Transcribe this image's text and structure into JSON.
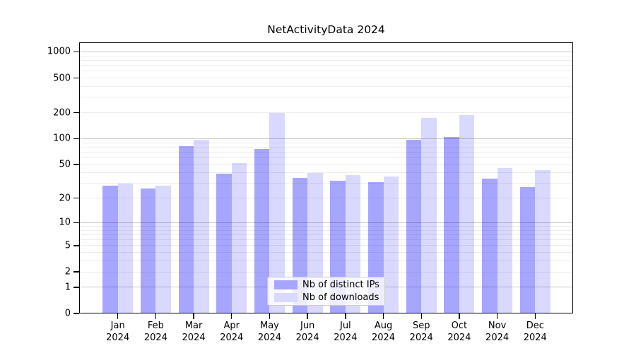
{
  "chart_data": {
    "type": "bar",
    "title": "NetActivityData 2024",
    "categories": [
      "Jan 2024",
      "Feb 2024",
      "Mar 2024",
      "Apr 2024",
      "May 2024",
      "Jun 2024",
      "Jul 2024",
      "Aug 2024",
      "Sep 2024",
      "Oct 2024",
      "Nov 2024",
      "Dec 2024"
    ],
    "series": [
      {
        "name": "Nb of distinct IPs",
        "color": "#a6a6ff",
        "values": [
          28,
          26,
          82,
          39,
          76,
          35,
          32,
          31,
          98,
          105,
          34,
          27
        ]
      },
      {
        "name": "Nb of downloads",
        "color": "#d9d9ff",
        "values": [
          30,
          28,
          97,
          52,
          200,
          40,
          38,
          36,
          175,
          187,
          46,
          43
        ]
      }
    ],
    "xlabel": "",
    "ylabel": "",
    "yscale": "log1p",
    "ylim": [
      0,
      1286
    ],
    "yticks": [
      0,
      1,
      2,
      5,
      10,
      20,
      50,
      100,
      200,
      500,
      1000
    ],
    "grid": {
      "major": [
        1,
        10,
        100,
        1000
      ],
      "minor": [
        2,
        3,
        4,
        5,
        6,
        7,
        8,
        9,
        20,
        30,
        40,
        50,
        60,
        70,
        80,
        90,
        200,
        300,
        400,
        500,
        600,
        700,
        800,
        900
      ]
    },
    "legend": {
      "position": "lower-center"
    },
    "axis_color": "#000000",
    "grid_minor_color": "#ececec",
    "grid_major_color": "#c8c8c8"
  }
}
